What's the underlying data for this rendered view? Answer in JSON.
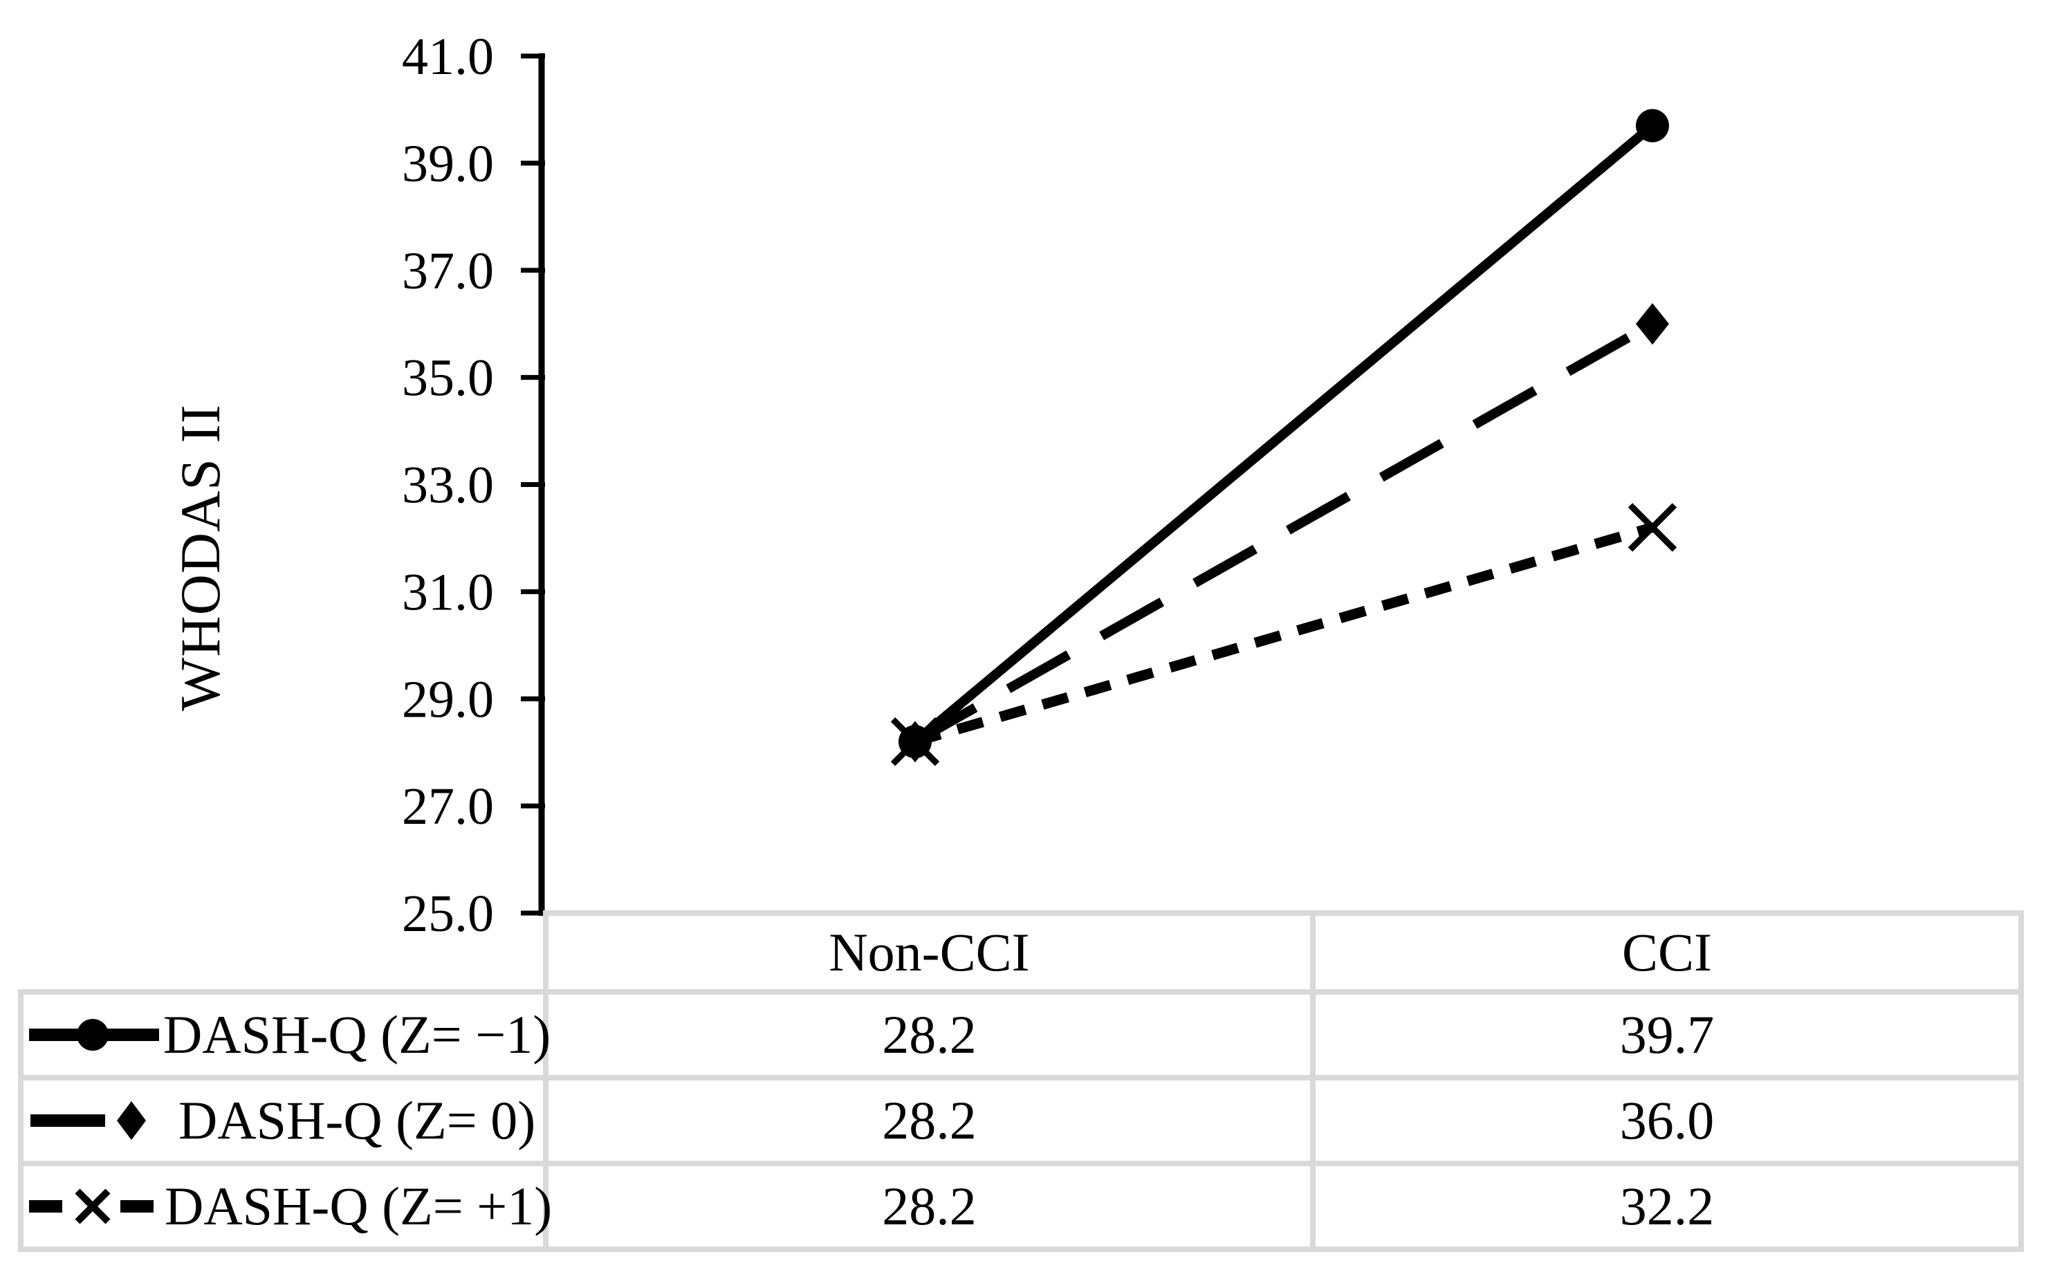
{
  "chart_data": {
    "type": "line",
    "title": "",
    "xlabel": "",
    "ylabel": "WHODAS II",
    "categories": [
      "Non-CCI",
      "CCI"
    ],
    "series": [
      {
        "name": "DASH-Q (Z= −1)",
        "values": [
          28.2,
          39.7
        ],
        "line_style": "solid",
        "marker": "circle"
      },
      {
        "name": "DASH-Q (Z= 0)",
        "values": [
          28.2,
          36.0
        ],
        "line_style": "long-dash",
        "marker": "diamond"
      },
      {
        "name": "DASH-Q (Z= +1)",
        "values": [
          28.2,
          32.2
        ],
        "line_style": "short-dash",
        "marker": "x"
      }
    ],
    "ylim": [
      25.0,
      41.0
    ],
    "y_tick_step": 2.0,
    "y_tick_labels": [
      "25.0",
      "27.0",
      "29.0",
      "31.0",
      "33.0",
      "35.0",
      "37.0",
      "39.0",
      "41.0"
    ],
    "grid": false,
    "legend_position": "table-left-column",
    "value_decimals": 1,
    "colors": {
      "series": "#000000",
      "text": "#000000",
      "table_border": "#d9d9d9",
      "background": "#ffffff"
    }
  }
}
